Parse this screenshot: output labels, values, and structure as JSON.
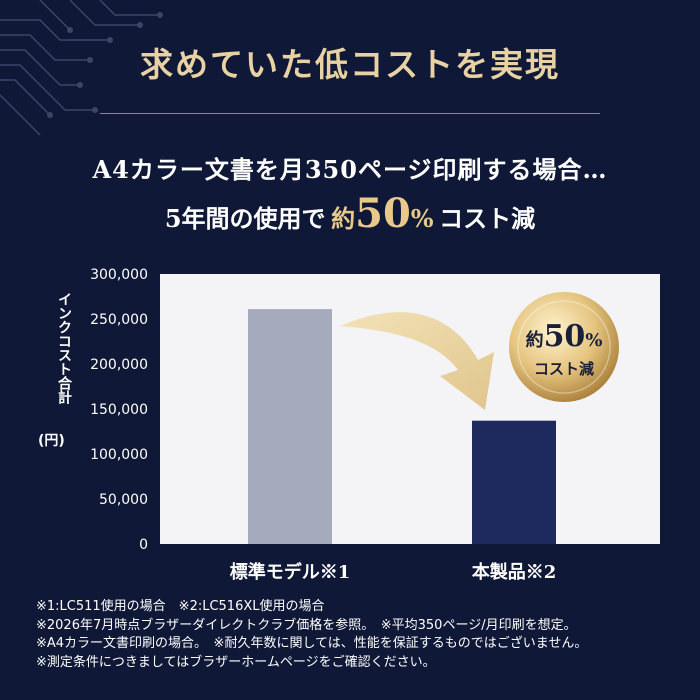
{
  "title": "求めていた低コストを実現",
  "subtitle_line1": "A4カラー文書を月350ページ印刷する場合…",
  "subtitle_line2": {
    "part1": "5年間の使用で",
    "part2": "約",
    "part3": "50",
    "part4": "%",
    "part5": "コスト減"
  },
  "badge": {
    "line1a": "約",
    "line1b": "50",
    "line1c": "%",
    "line2": "コスト減"
  },
  "colors": {
    "background": "#0f1836",
    "gold": "#e8d2a3",
    "bar_standard": "#a5aabd",
    "bar_product": "#1e2a5e",
    "plot_bg": "#f4f4f6"
  },
  "chart_data": {
    "type": "bar",
    "categories": [
      "標準モデル※1",
      "本製品※2"
    ],
    "values": [
      261000,
      137000
    ],
    "ylabel": "インクコスト合計",
    "ylabel_unit": "(円)",
    "yticks": [
      "0",
      "50,000",
      "100,000",
      "150,000",
      "200,000",
      "250,000",
      "300,000"
    ],
    "ylim": [
      0,
      300000
    ],
    "grid": false
  },
  "notes": [
    "※1:LC511使用の場合　※2:LC516XL使用の場合",
    "※2026年7月時点ブラザーダイレクトクラブ価格を参照。　※平均350ページ/月印刷を想定。",
    "※A4カラー文書印刷の場合。　※耐久年数に関しては、性能を保証するものではございません。",
    "※測定条件につきましてはブラザーホームページをご確認ください。"
  ]
}
